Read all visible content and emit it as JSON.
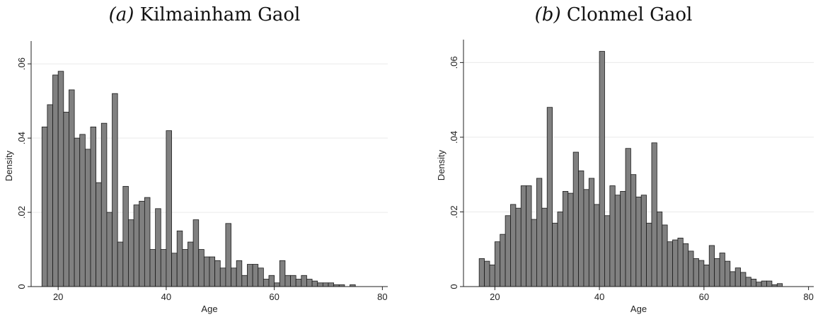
{
  "chart_data": [
    {
      "type": "bar",
      "panel_label": "(a)",
      "title": "Kilmainham Gaol",
      "xlabel": "Age",
      "ylabel": "Density",
      "xlim": [
        15,
        81
      ],
      "ylim": [
        0,
        0.065
      ],
      "xticks": [
        20,
        40,
        60,
        80
      ],
      "yticks": [
        0,
        0.02,
        0.04,
        0.06
      ],
      "ytick_labels": [
        "0",
        ".02",
        ".04",
        ".06"
      ],
      "grid": "horizontal",
      "bar_color": "#808080",
      "x_start": 17,
      "bin_width": 1,
      "values": [
        0.043,
        0.049,
        0.057,
        0.058,
        0.047,
        0.053,
        0.04,
        0.041,
        0.037,
        0.043,
        0.028,
        0.044,
        0.02,
        0.052,
        0.012,
        0.027,
        0.018,
        0.022,
        0.023,
        0.024,
        0.01,
        0.021,
        0.01,
        0.042,
        0.009,
        0.015,
        0.01,
        0.012,
        0.018,
        0.01,
        0.008,
        0.008,
        0.007,
        0.005,
        0.017,
        0.005,
        0.007,
        0.003,
        0.006,
        0.006,
        0.005,
        0.002,
        0.003,
        0.001,
        0.007,
        0.003,
        0.003,
        0.002,
        0.003,
        0.002,
        0.0015,
        0.001,
        0.001,
        0.001,
        0.0005,
        0.0005,
        0.0,
        0.0005
      ]
    },
    {
      "type": "bar",
      "panel_label": "(b)",
      "title": "Clonmel Gaol",
      "xlabel": "Age",
      "ylabel": "Density",
      "xlim": [
        14,
        81
      ],
      "ylim": [
        0,
        0.065
      ],
      "xticks": [
        20,
        40,
        60,
        80
      ],
      "yticks": [
        0,
        0.02,
        0.04,
        0.06
      ],
      "ytick_labels": [
        "0",
        ".02",
        ".04",
        ".06"
      ],
      "grid": "horizontal",
      "bar_color": "#808080",
      "x_start": 17,
      "bin_width": 1,
      "values": [
        0.0075,
        0.0068,
        0.0058,
        0.012,
        0.014,
        0.019,
        0.022,
        0.021,
        0.027,
        0.027,
        0.018,
        0.029,
        0.021,
        0.048,
        0.017,
        0.02,
        0.0255,
        0.025,
        0.036,
        0.031,
        0.026,
        0.029,
        0.022,
        0.063,
        0.019,
        0.027,
        0.0245,
        0.0255,
        0.037,
        0.03,
        0.024,
        0.0245,
        0.017,
        0.0385,
        0.02,
        0.0165,
        0.012,
        0.0125,
        0.013,
        0.0115,
        0.0095,
        0.0075,
        0.007,
        0.0058,
        0.011,
        0.0075,
        0.009,
        0.0068,
        0.004,
        0.005,
        0.0038,
        0.0025,
        0.002,
        0.0012,
        0.0015,
        0.0015,
        0.0005,
        0.0008
      ]
    }
  ]
}
